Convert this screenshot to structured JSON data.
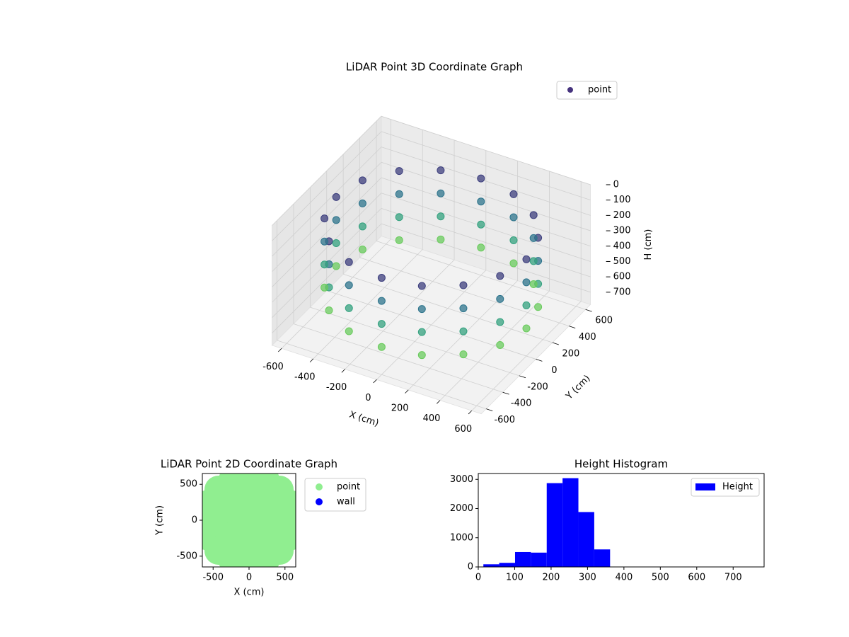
{
  "chart_data": [
    {
      "type": "scatter3d",
      "title": "LiDAR Point 3D Coordinate Graph",
      "xlabel": "X (cm)",
      "ylabel": "Y (cm)",
      "zlabel": "H (cm)",
      "xlim": [
        -660,
        660
      ],
      "ylim": [
        -660,
        660
      ],
      "zlim": [
        0,
        780
      ],
      "z_inverted": true,
      "xticks": [
        -600,
        -400,
        -200,
        0,
        200,
        400,
        600
      ],
      "yticks": [
        -600,
        -400,
        -200,
        0,
        200,
        400,
        600
      ],
      "zticks": [
        0,
        100,
        200,
        300,
        400,
        500,
        600,
        700
      ],
      "grid": true,
      "legend": "upper right",
      "colormap": "viridis",
      "series": [
        {
          "name": "point",
          "color": "#46337e",
          "x": [
            600,
            554,
            424,
            230,
            0,
            -230,
            -424,
            -554,
            -600,
            -554,
            -424,
            -230,
            0,
            230,
            424,
            554,
            600,
            554,
            424,
            230,
            0,
            -230,
            -424,
            -554,
            -600,
            -554,
            -424,
            -230,
            0,
            230,
            424,
            554,
            600,
            554,
            424,
            230,
            0,
            -230,
            -424,
            -554,
            -600,
            -554,
            -424,
            -230,
            0,
            230,
            424,
            554,
            600,
            554,
            424,
            230,
            0,
            -230,
            -424,
            -554,
            -600,
            -554,
            -424,
            -230,
            0,
            230,
            424,
            554
          ],
          "y": [
            0,
            230,
            424,
            554,
            600,
            554,
            424,
            230,
            0,
            -230,
            -424,
            -554,
            -600,
            -554,
            -424,
            -230,
            0,
            230,
            424,
            554,
            600,
            554,
            424,
            230,
            0,
            -230,
            -424,
            -554,
            -600,
            -554,
            -424,
            -230,
            0,
            230,
            424,
            554,
            600,
            554,
            424,
            230,
            0,
            -230,
            -424,
            -554,
            -600,
            -554,
            -424,
            -230,
            0,
            230,
            424,
            554,
            600,
            554,
            424,
            230,
            0,
            -230,
            -424,
            -554,
            -600,
            -554,
            -424,
            -230
          ],
          "z": [
            150,
            150,
            150,
            150,
            150,
            150,
            150,
            150,
            150,
            150,
            150,
            150,
            150,
            150,
            150,
            150,
            300,
            300,
            300,
            300,
            300,
            300,
            300,
            300,
            300,
            300,
            300,
            300,
            300,
            300,
            300,
            300,
            450,
            450,
            450,
            450,
            450,
            450,
            450,
            450,
            450,
            450,
            450,
            450,
            450,
            450,
            450,
            450,
            600,
            600,
            600,
            600,
            600,
            600,
            600,
            600,
            600,
            600,
            600,
            600,
            600,
            600,
            600,
            600
          ]
        }
      ]
    },
    {
      "type": "scatter",
      "title": "LiDAR Point 2D Coordinate Graph",
      "xlabel": "X (cm)",
      "ylabel": "Y (cm)",
      "xlim": [
        -650,
        650
      ],
      "ylim": [
        -650,
        650
      ],
      "xticks": [
        -500,
        0,
        500
      ],
      "yticks": [
        -500,
        0,
        500
      ],
      "legend": "outside right",
      "series": [
        {
          "name": "point",
          "color": "#90ee90",
          "x": [
            600,
            554,
            424,
            230,
            0,
            -230,
            -424,
            -554,
            -600,
            -554,
            -424,
            -230,
            0,
            230,
            424,
            554,
            0,
            300,
            -300,
            0,
            0,
            212,
            -212,
            212,
            -212
          ],
          "y": [
            0,
            230,
            424,
            554,
            600,
            554,
            424,
            230,
            0,
            -230,
            -424,
            -554,
            -600,
            -554,
            -424,
            -230,
            0,
            0,
            0,
            300,
            -300,
            212,
            212,
            -212,
            -212
          ]
        },
        {
          "name": "wall",
          "color": "#0000ff",
          "x": [],
          "y": []
        }
      ]
    },
    {
      "type": "histogram",
      "title": "Height Histogram",
      "xlim": [
        0,
        785
      ],
      "ylim": [
        0,
        3200
      ],
      "xticks": [
        0,
        100,
        200,
        300,
        400,
        500,
        600,
        700
      ],
      "yticks": [
        0,
        1000,
        2000,
        3000
      ],
      "legend": "upper right",
      "series": [
        {
          "name": "Height",
          "color": "#0000ff",
          "bins": [
            14,
            57.5,
            101,
            144.5,
            188,
            231.5,
            275,
            318.5,
            362,
            405.5,
            449,
            492.5,
            536,
            579.5,
            623,
            666.5,
            710,
            753.5
          ],
          "values": [
            90,
            140,
            510,
            490,
            2870,
            3040,
            1880,
            600,
            5,
            3,
            2,
            2,
            1,
            1,
            1,
            1,
            1
          ]
        }
      ]
    }
  ]
}
